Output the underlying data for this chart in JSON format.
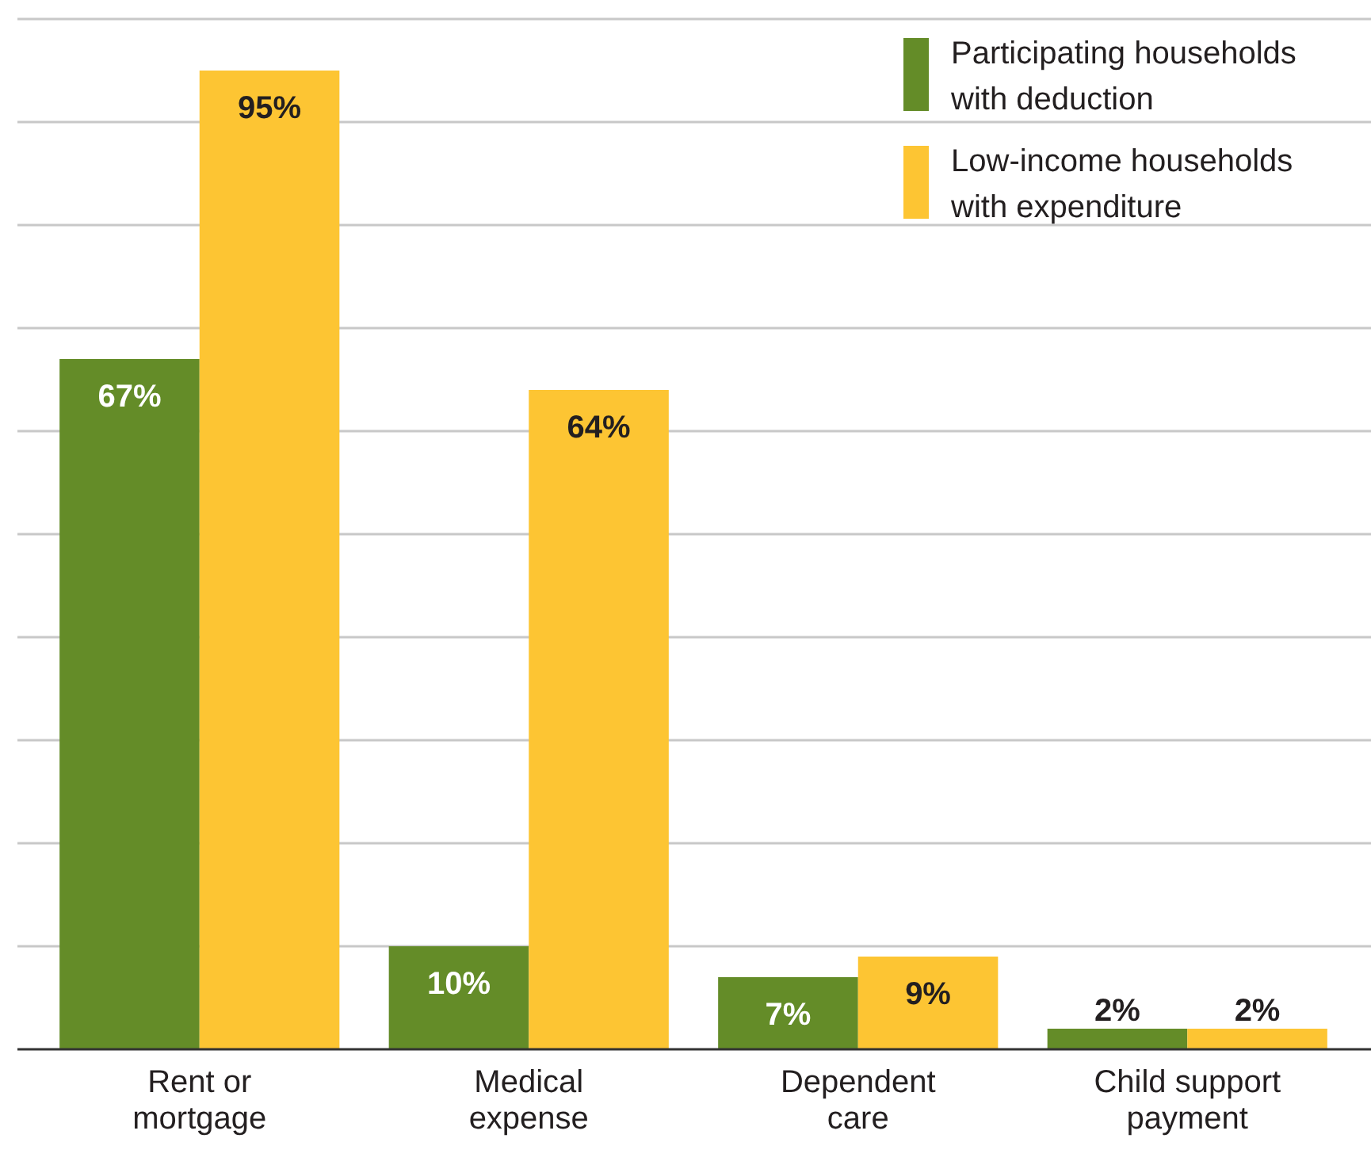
{
  "chart_data": {
    "type": "bar",
    "categories": [
      "Rent or mortgage",
      "Medical expense",
      "Dependent care",
      "Child support payment"
    ],
    "series": [
      {
        "name": "Participating households with deduction",
        "color": "#648c28",
        "values": [
          67,
          10,
          7,
          2
        ],
        "value_labels": [
          "67%",
          "10%",
          "7%",
          "2%"
        ]
      },
      {
        "name": "Low-income households with expenditure",
        "color": "#fdc533",
        "values": [
          95,
          64,
          9,
          2
        ],
        "value_labels": [
          "95%",
          "64%",
          "9%",
          "2%"
        ]
      }
    ],
    "ylim": [
      0,
      100
    ],
    "yticks": [
      {
        "value": 0,
        "label": null
      },
      {
        "value": 10,
        "label": null
      },
      {
        "value": 20,
        "label": null
      },
      {
        "value": 30,
        "label": null
      },
      {
        "value": 40,
        "label": null
      },
      {
        "value": 50,
        "label": null
      },
      {
        "value": 60,
        "label": null
      },
      {
        "value": 70,
        "label": null
      },
      {
        "value": 80,
        "label": null
      },
      {
        "value": 90,
        "label": null
      },
      {
        "value": 100,
        "label": null
      }
    ],
    "tick_labels": "x",
    "grid": "y",
    "legend": "top right"
  }
}
